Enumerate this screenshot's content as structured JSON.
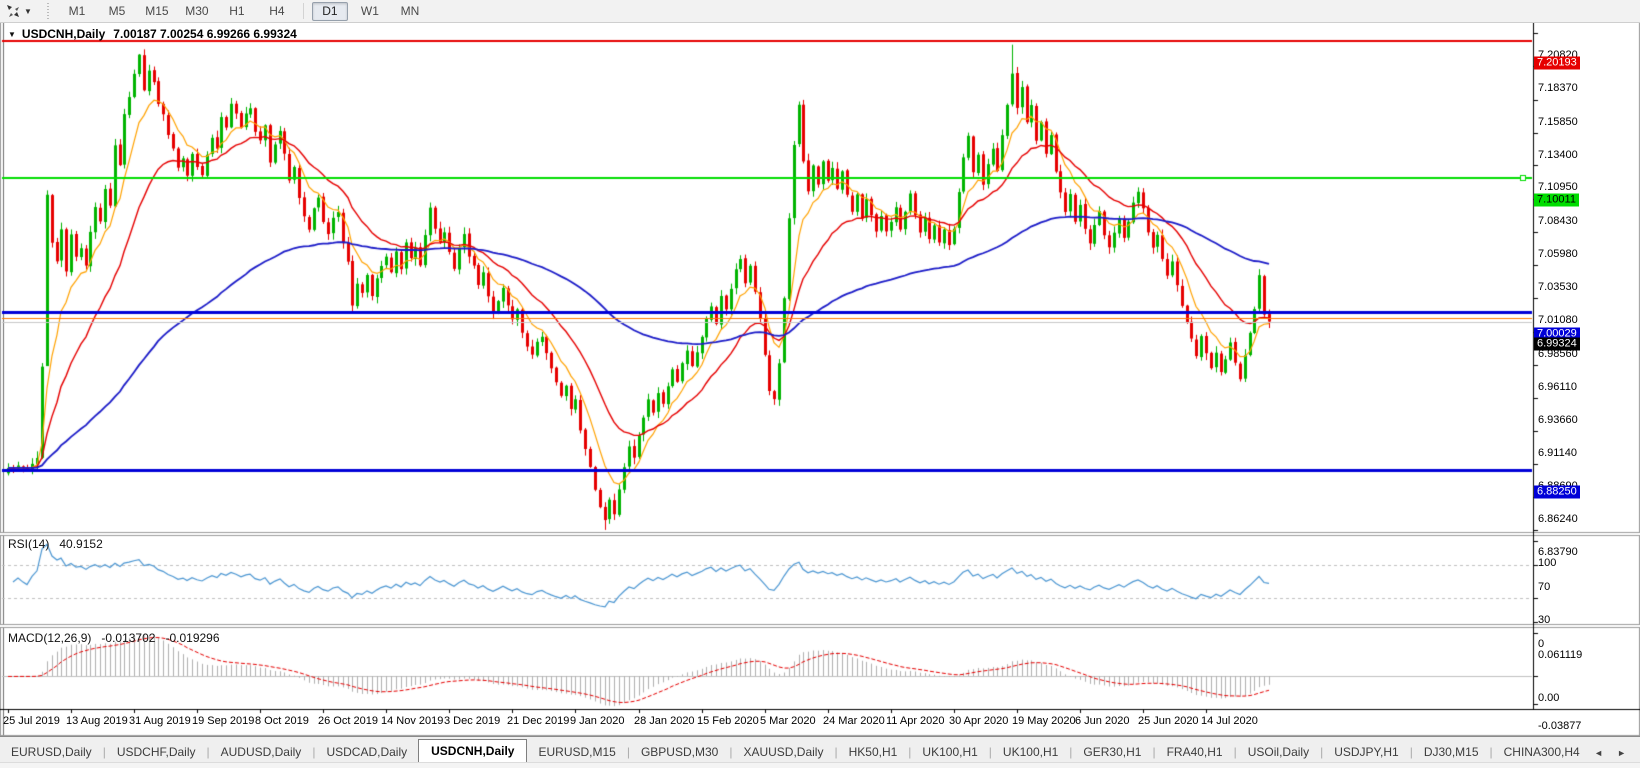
{
  "toolbar": {
    "timeframes": [
      "M1",
      "M5",
      "M15",
      "M30",
      "H1",
      "H4",
      "D1",
      "W1",
      "MN"
    ],
    "active_timeframe": "D1",
    "group_break_after": "H4",
    "dropdown_caret": "▼"
  },
  "chart_window": {
    "menu_caret": "▼",
    "symbol_title": "USDCNH,Daily",
    "ohlc_text": "7.00187 7.00254 6.99266 6.99324",
    "open": "7.00187",
    "high": "7.00254",
    "low": "6.99266",
    "close": "6.99324"
  },
  "price_axis": {
    "ticks": [
      "7.20820",
      "7.18370",
      "7.15850",
      "7.13400",
      "7.10950",
      "7.08430",
      "7.05980",
      "7.03530",
      "7.01080",
      "6.98560",
      "6.96110",
      "6.93660",
      "6.91140",
      "6.88690",
      "6.86240",
      "6.83790"
    ],
    "badges": [
      {
        "text": "7.20193",
        "price": 7.20193,
        "bg": "#e60000",
        "fg": "#ffffff"
      },
      {
        "text": "7.10011",
        "price": 7.10011,
        "bg": "#00dd00",
        "fg": "#000000"
      },
      {
        "text": "7.00029",
        "price": 7.00029,
        "bg": "#0000d8",
        "fg": "#ffffff"
      },
      {
        "text": "6.99324",
        "price": 6.99324,
        "bg": "#000000",
        "fg": "#ffffff"
      },
      {
        "text": "6.88250",
        "price": 6.8825,
        "bg": "#0000d8",
        "fg": "#ffffff"
      }
    ]
  },
  "indicator_rsi": {
    "label": "RSI(14)",
    "value": "40.9152",
    "axis_ticks": [
      "100",
      "70",
      "30",
      "0"
    ],
    "levels": [
      70,
      30
    ]
  },
  "indicator_macd": {
    "label": "MACD(12,26,9)",
    "value_main": "-0.013702",
    "value_signal": "-0.019296",
    "axis_ticks": [
      "0.061119",
      "0.00",
      "-0.03877"
    ]
  },
  "time_axis": {
    "labels": [
      "25 Jul 2019",
      "13 Aug 2019",
      "31 Aug 2019",
      "19 Sep 2019",
      "8 Oct 2019",
      "26 Oct 2019",
      "14 Nov 2019",
      "3 Dec 2019",
      "21 Dec 2019",
      "9 Jan 2020",
      "28 Jan 2020",
      "15 Feb 2020",
      "5 Mar 2020",
      "24 Mar 2020",
      "11 Apr 2020",
      "30 Apr 2020",
      "19 May 2020",
      "6 Jun 2020",
      "25 Jun 2020",
      "14 Jul 2020"
    ]
  },
  "tab_bar": {
    "tabs": [
      {
        "label": "EURUSD,Daily",
        "active": false
      },
      {
        "label": "USDCHF,Daily",
        "active": false
      },
      {
        "label": "AUDUSD,Daily",
        "active": false
      },
      {
        "label": "USDCAD,Daily",
        "active": false
      },
      {
        "label": "USDCNH,Daily",
        "active": true
      },
      {
        "label": "EURUSD,M15",
        "active": false
      },
      {
        "label": "GBPUSD,M30",
        "active": false
      },
      {
        "label": "XAUUSD,Daily",
        "active": false
      },
      {
        "label": "HK50,H1",
        "active": false
      },
      {
        "label": "UK100,H1",
        "active": false
      },
      {
        "label": "UK100,H1",
        "active": false
      },
      {
        "label": "GER30,H1",
        "active": false
      },
      {
        "label": "FRA40,H1",
        "active": false
      },
      {
        "label": "USOil,Daily",
        "active": false
      },
      {
        "label": "USDJPY,H1",
        "active": false
      },
      {
        "label": "DJ30,M15",
        "active": false
      },
      {
        "label": "CHINA300,H4",
        "active": false
      }
    ],
    "nav_left": "◄",
    "nav_right": "►"
  },
  "chart_data": {
    "type": "candlestick",
    "symbol": "USDCNH",
    "timeframe": "Daily",
    "bars": 261,
    "bars_per_label": 13,
    "price_range": {
      "top": 7.2082,
      "bottom": 6.8379
    },
    "close_waypoints": [
      [
        0,
        6.884
      ],
      [
        2,
        6.886
      ],
      [
        4,
        6.883
      ],
      [
        6,
        6.892
      ],
      [
        7,
        6.96
      ],
      [
        8,
        7.088
      ],
      [
        9,
        7.052
      ],
      [
        10,
        7.038
      ],
      [
        11,
        7.062
      ],
      [
        12,
        7.03
      ],
      [
        13,
        7.058
      ],
      [
        14,
        7.042
      ],
      [
        15,
        7.048
      ],
      [
        16,
        7.035
      ],
      [
        17,
        7.06
      ],
      [
        18,
        7.078
      ],
      [
        19,
        7.068
      ],
      [
        20,
        7.092
      ],
      [
        21,
        7.08
      ],
      [
        22,
        7.125
      ],
      [
        23,
        7.11
      ],
      [
        24,
        7.148
      ],
      [
        25,
        7.16
      ],
      [
        26,
        7.178
      ],
      [
        27,
        7.192
      ],
      [
        28,
        7.165
      ],
      [
        29,
        7.18
      ],
      [
        30,
        7.172
      ],
      [
        31,
        7.155
      ],
      [
        32,
        7.148
      ],
      [
        33,
        7.132
      ],
      [
        34,
        7.122
      ],
      [
        35,
        7.108
      ],
      [
        36,
        7.115
      ],
      [
        37,
        7.102
      ],
      [
        38,
        7.118
      ],
      [
        39,
        7.108
      ],
      [
        40,
        7.102
      ],
      [
        41,
        7.118
      ],
      [
        42,
        7.13
      ],
      [
        43,
        7.122
      ],
      [
        44,
        7.145
      ],
      [
        45,
        7.138
      ],
      [
        46,
        7.155
      ],
      [
        47,
        7.148
      ],
      [
        48,
        7.138
      ],
      [
        49,
        7.148
      ],
      [
        50,
        7.152
      ],
      [
        51,
        7.135
      ],
      [
        52,
        7.128
      ],
      [
        53,
        7.14
      ],
      [
        54,
        7.112
      ],
      [
        55,
        7.125
      ],
      [
        56,
        7.135
      ],
      [
        57,
        7.118
      ],
      [
        58,
        7.098
      ],
      [
        59,
        7.108
      ],
      [
        60,
        7.085
      ],
      [
        61,
        7.072
      ],
      [
        62,
        7.062
      ],
      [
        63,
        7.078
      ],
      [
        64,
        7.085
      ],
      [
        65,
        7.068
      ],
      [
        66,
        7.058
      ],
      [
        67,
        7.07
      ],
      [
        68,
        7.075
      ],
      [
        69,
        7.052
      ],
      [
        70,
        7.038
      ],
      [
        71,
        7.005
      ],
      [
        72,
        7.022
      ],
      [
        73,
        7.015
      ],
      [
        74,
        7.028
      ],
      [
        75,
        7.012
      ],
      [
        76,
        7.025
      ],
      [
        77,
        7.035
      ],
      [
        78,
        7.042
      ],
      [
        79,
        7.03
      ],
      [
        80,
        7.045
      ],
      [
        81,
        7.032
      ],
      [
        82,
        7.052
      ],
      [
        83,
        7.04
      ],
      [
        84,
        7.048
      ],
      [
        85,
        7.035
      ],
      [
        86,
        7.058
      ],
      [
        87,
        7.078
      ],
      [
        88,
        7.062
      ],
      [
        89,
        7.052
      ],
      [
        90,
        7.06
      ],
      [
        91,
        7.045
      ],
      [
        92,
        7.032
      ],
      [
        93,
        7.048
      ],
      [
        94,
        7.058
      ],
      [
        95,
        7.042
      ],
      [
        96,
        7.035
      ],
      [
        97,
        7.02
      ],
      [
        98,
        7.03
      ],
      [
        99,
        7.012
      ],
      [
        100,
        7.0
      ],
      [
        101,
        7.008
      ],
      [
        102,
        7.018
      ],
      [
        103,
        7.005
      ],
      [
        104,
        6.995
      ],
      [
        105,
        7.002
      ],
      [
        106,
        6.985
      ],
      [
        107,
        6.975
      ],
      [
        108,
        6.968
      ],
      [
        109,
        6.978
      ],
      [
        110,
        6.982
      ],
      [
        111,
        6.97
      ],
      [
        112,
        6.958
      ],
      [
        113,
        6.948
      ],
      [
        114,
        6.938
      ],
      [
        115,
        6.945
      ],
      [
        116,
        6.928
      ],
      [
        117,
        6.935
      ],
      [
        118,
        6.912
      ],
      [
        119,
        6.898
      ],
      [
        120,
        6.885
      ],
      [
        121,
        6.868
      ],
      [
        122,
        6.855
      ],
      [
        123,
        6.845
      ],
      [
        124,
        6.86
      ],
      [
        125,
        6.85
      ],
      [
        126,
        6.868
      ],
      [
        127,
        6.885
      ],
      [
        128,
        6.9
      ],
      [
        129,
        6.892
      ],
      [
        130,
        6.908
      ],
      [
        131,
        6.922
      ],
      [
        132,
        6.935
      ],
      [
        133,
        6.925
      ],
      [
        134,
        6.94
      ],
      [
        135,
        6.932
      ],
      [
        136,
        6.945
      ],
      [
        137,
        6.958
      ],
      [
        138,
        6.948
      ],
      [
        139,
        6.962
      ],
      [
        140,
        6.972
      ],
      [
        141,
        6.96
      ],
      [
        142,
        6.97
      ],
      [
        143,
        6.982
      ],
      [
        144,
        6.995
      ],
      [
        145,
        7.005
      ],
      [
        146,
        6.992
      ],
      [
        147,
        7.012
      ],
      [
        148,
        7.002
      ],
      [
        149,
        7.018
      ],
      [
        150,
        7.032
      ],
      [
        151,
        7.04
      ],
      [
        152,
        7.022
      ],
      [
        153,
        7.035
      ],
      [
        154,
        7.015
      ],
      [
        155,
        6.995
      ],
      [
        156,
        6.968
      ],
      [
        157,
        6.942
      ],
      [
        158,
        6.935
      ],
      [
        159,
        6.962
      ],
      [
        160,
        7.01
      ],
      [
        161,
        7.07
      ],
      [
        162,
        7.125
      ],
      [
        163,
        7.155
      ],
      [
        164,
        7.112
      ],
      [
        165,
        7.09
      ],
      [
        166,
        7.11
      ],
      [
        167,
        7.095
      ],
      [
        168,
        7.112
      ],
      [
        169,
        7.098
      ],
      [
        170,
        7.108
      ],
      [
        171,
        7.092
      ],
      [
        172,
        7.105
      ],
      [
        173,
        7.088
      ],
      [
        174,
        7.075
      ],
      [
        175,
        7.088
      ],
      [
        176,
        7.07
      ],
      [
        177,
        7.085
      ],
      [
        178,
        7.072
      ],
      [
        179,
        7.06
      ],
      [
        180,
        7.072
      ],
      [
        181,
        7.06
      ],
      [
        182,
        7.068
      ],
      [
        183,
        7.078
      ],
      [
        184,
        7.062
      ],
      [
        185,
        7.075
      ],
      [
        186,
        7.088
      ],
      [
        187,
        7.072
      ],
      [
        188,
        7.06
      ],
      [
        189,
        7.07
      ],
      [
        190,
        7.055
      ],
      [
        191,
        7.065
      ],
      [
        192,
        7.052
      ],
      [
        193,
        7.062
      ],
      [
        194,
        7.05
      ],
      [
        195,
        7.062
      ],
      [
        196,
        7.09
      ],
      [
        197,
        7.115
      ],
      [
        198,
        7.132
      ],
      [
        199,
        7.105
      ],
      [
        200,
        7.118
      ],
      [
        201,
        7.095
      ],
      [
        202,
        7.11
      ],
      [
        203,
        7.122
      ],
      [
        204,
        7.105
      ],
      [
        205,
        7.132
      ],
      [
        206,
        7.155
      ],
      [
        207,
        7.178
      ],
      [
        208,
        7.152
      ],
      [
        209,
        7.168
      ],
      [
        210,
        7.142
      ],
      [
        211,
        7.155
      ],
      [
        212,
        7.128
      ],
      [
        213,
        7.142
      ],
      [
        214,
        7.118
      ],
      [
        215,
        7.132
      ],
      [
        216,
        7.105
      ],
      [
        217,
        7.09
      ],
      [
        218,
        7.075
      ],
      [
        219,
        7.088
      ],
      [
        220,
        7.068
      ],
      [
        221,
        7.08
      ],
      [
        222,
        7.062
      ],
      [
        223,
        7.052
      ],
      [
        224,
        7.065
      ],
      [
        225,
        7.075
      ],
      [
        226,
        7.058
      ],
      [
        227,
        7.048
      ],
      [
        228,
        7.06
      ],
      [
        229,
        7.07
      ],
      [
        230,
        7.055
      ],
      [
        231,
        7.068
      ],
      [
        232,
        7.082
      ],
      [
        233,
        7.09
      ],
      [
        234,
        7.078
      ],
      [
        235,
        7.06
      ],
      [
        236,
        7.048
      ],
      [
        237,
        7.058
      ],
      [
        238,
        7.04
      ],
      [
        239,
        7.028
      ],
      [
        240,
        7.038
      ],
      [
        241,
        7.02
      ],
      [
        242,
        7.005
      ],
      [
        243,
        6.992
      ],
      [
        244,
        6.98
      ],
      [
        245,
        6.968
      ],
      [
        246,
        6.982
      ],
      [
        247,
        6.97
      ],
      [
        248,
        6.958
      ],
      [
        249,
        6.97
      ],
      [
        250,
        6.955
      ],
      [
        251,
        6.965
      ],
      [
        252,
        6.978
      ],
      [
        253,
        6.962
      ],
      [
        254,
        6.95
      ],
      [
        255,
        6.968
      ],
      [
        256,
        6.985
      ],
      [
        257,
        7.002
      ],
      [
        258,
        7.028
      ],
      [
        259,
        6.998
      ],
      [
        260,
        6.9932
      ]
    ],
    "wick_overrides": {
      "8": {
        "low": 6.995
      },
      "27": {
        "high": 7.1925
      },
      "123": {
        "low": 6.838
      },
      "207": {
        "high": 7.1995
      }
    },
    "horizontal_lines": [
      {
        "price": 7.20193,
        "color": "#e60000",
        "width": 2,
        "handle": false
      },
      {
        "price": 7.10011,
        "color": "#00dd00",
        "width": 2,
        "handle": true
      },
      {
        "price": 7.00029,
        "color": "#0000d8",
        "width": 3,
        "handle": false
      },
      {
        "price": 6.8825,
        "color": "#0000d8",
        "width": 3,
        "handle": false
      }
    ],
    "price_marker_lines": [
      {
        "price": 6.9962,
        "color": "#ff7a00",
        "width": 1
      },
      {
        "price": 6.9932,
        "color": "#c8c8c8",
        "width": 1
      }
    ],
    "moving_averages": [
      {
        "period": 8,
        "color": "#ffa200",
        "lw": 1.2
      },
      {
        "period": 21,
        "color": "#e60000",
        "lw": 1.4
      },
      {
        "period": 89,
        "color": "#1c1cc8",
        "lw": 1.8
      }
    ],
    "rsi": {
      "period": 14,
      "last": 40.9152,
      "range": [
        0,
        100
      ],
      "levels": [
        70,
        30
      ]
    },
    "macd": {
      "fast": 12,
      "slow": 26,
      "signal": 9,
      "last_main": -0.013702,
      "last_signal": -0.019296,
      "range": [
        -0.03877,
        0.061119
      ]
    },
    "colors": {
      "up": "#00b400",
      "down": "#e60000",
      "rsi_line": "#4b96d2",
      "level_dash": "#c0c0c0",
      "macd_hist": "#b0b0b0",
      "macd_signal": "#e60000",
      "axis_line": "#000000",
      "separator": "#9b9b9b",
      "background": "#ffffff"
    }
  }
}
